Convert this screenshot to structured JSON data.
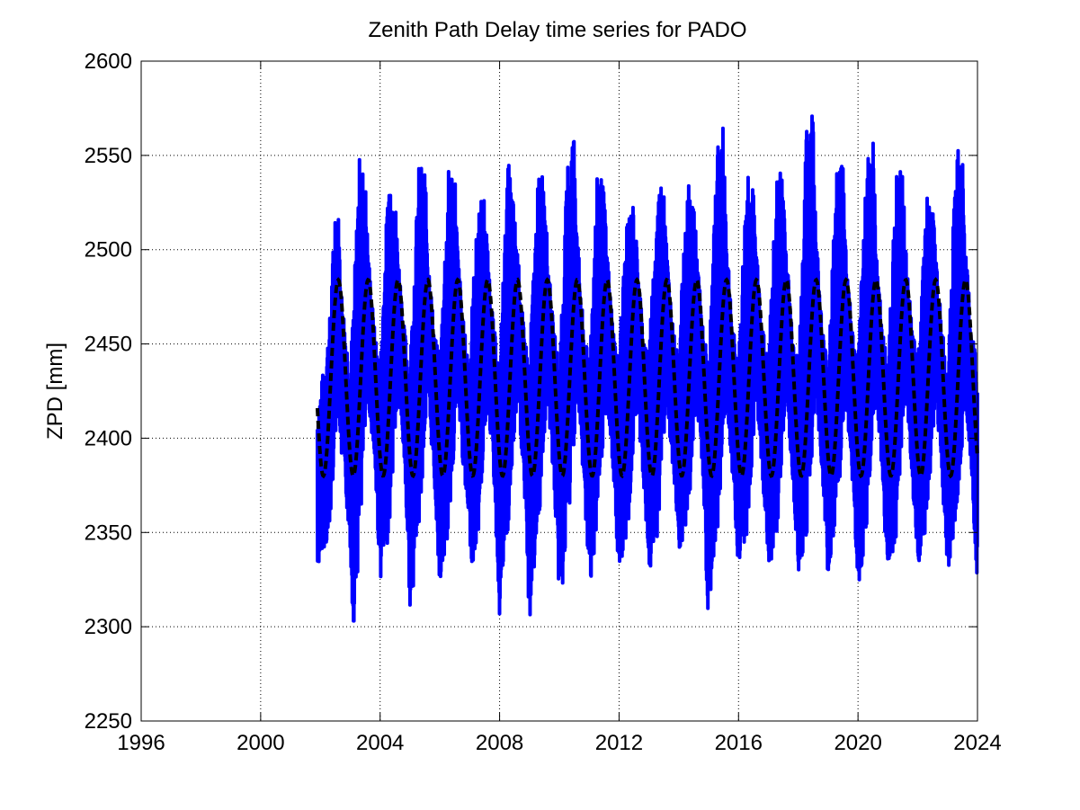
{
  "chart_data": {
    "type": "line",
    "title": "Zenith Path Delay time series for PADO",
    "xlabel": "",
    "ylabel": "ZPD [mm]",
    "xlim": [
      1996,
      2024
    ],
    "ylim": [
      2250,
      2600
    ],
    "xticks": [
      "1996",
      "2000",
      "2004",
      "2008",
      "2012",
      "2016",
      "2020",
      "2024"
    ],
    "yticks": [
      "2250",
      "2300",
      "2350",
      "2400",
      "2450",
      "2500",
      "2550",
      "2600"
    ],
    "grid": true,
    "colors": {
      "observed": "#0000ff",
      "model": "#000000"
    },
    "series": [
      {
        "style": "solid",
        "color": "#0000ff",
        "x_range": [
          2001.8,
          2024.0
        ],
        "envelope": {
          "x": [
            2001.9,
            2002.0,
            2002.3,
            2002.5,
            2002.6,
            2002.7,
            2002.9,
            2003.0,
            2003.1,
            2003.3,
            2003.5,
            2003.6,
            2003.8,
            2004.0,
            2004.1,
            2004.3,
            2004.5,
            2004.6,
            2004.8,
            2005.0,
            2005.1,
            2005.3,
            2005.5,
            2005.6,
            2005.8,
            2006.0,
            2006.1,
            2006.3,
            2006.5,
            2006.6,
            2006.8,
            2007.0,
            2007.1,
            2007.3,
            2007.5,
            2007.6,
            2007.8,
            2008.0,
            2008.1,
            2008.3,
            2008.5,
            2008.6,
            2008.8,
            2009.0,
            2009.1,
            2009.3,
            2009.5,
            2009.6,
            2009.8,
            2010.0,
            2010.1,
            2010.3,
            2010.5,
            2010.6,
            2010.8,
            2011.0,
            2011.1,
            2011.3,
            2011.5,
            2011.6,
            2011.8,
            2012.0,
            2012.1,
            2012.3,
            2012.5,
            2012.6,
            2012.8,
            2013.0,
            2013.1,
            2013.3,
            2013.5,
            2013.6,
            2013.8,
            2014.0,
            2014.1,
            2014.3,
            2014.5,
            2014.6,
            2014.8,
            2015.0,
            2015.1,
            2015.3,
            2015.5,
            2015.6,
            2015.8,
            2016.0,
            2016.1,
            2016.3,
            2016.5,
            2016.6,
            2016.8,
            2017.0,
            2017.1,
            2017.3,
            2017.5,
            2017.6,
            2017.8,
            2018.0,
            2018.1,
            2018.3,
            2018.5,
            2018.6,
            2018.8,
            2019.0,
            2019.1,
            2019.3,
            2019.5,
            2019.6,
            2019.8,
            2020.0,
            2020.1,
            2020.3,
            2020.5,
            2020.6,
            2020.8,
            2021.0,
            2021.1,
            2021.3,
            2021.5,
            2021.6,
            2021.8,
            2022.0,
            2022.1,
            2022.3,
            2022.5,
            2022.6,
            2022.8,
            2023.0,
            2023.1,
            2023.3,
            2023.5,
            2023.6,
            2023.8,
            2024.0
          ],
          "high": [
            2415,
            2425,
            2460,
            2525,
            2520,
            2480,
            2450,
            2440,
            2470,
            2550,
            2540,
            2500,
            2460,
            2440,
            2480,
            2545,
            2530,
            2500,
            2460,
            2440,
            2480,
            2545,
            2545,
            2500,
            2460,
            2440,
            2480,
            2545,
            2545,
            2500,
            2460,
            2440,
            2480,
            2525,
            2530,
            2500,
            2460,
            2440,
            2480,
            2550,
            2520,
            2500,
            2460,
            2440,
            2480,
            2540,
            2545,
            2500,
            2460,
            2440,
            2480,
            2555,
            2565,
            2510,
            2460,
            2440,
            2480,
            2550,
            2530,
            2500,
            2460,
            2440,
            2480,
            2520,
            2525,
            2500,
            2460,
            2440,
            2480,
            2530,
            2545,
            2500,
            2460,
            2440,
            2480,
            2535,
            2530,
            2500,
            2460,
            2440,
            2480,
            2560,
            2565,
            2510,
            2460,
            2440,
            2480,
            2550,
            2530,
            2500,
            2460,
            2440,
            2480,
            2545,
            2540,
            2500,
            2460,
            2440,
            2480,
            2575,
            2575,
            2510,
            2460,
            2440,
            2480,
            2545,
            2550,
            2500,
            2460,
            2440,
            2480,
            2555,
            2560,
            2510,
            2460,
            2440,
            2480,
            2545,
            2540,
            2500,
            2460,
            2440,
            2480,
            2530,
            2525,
            2500,
            2460,
            2440,
            2480,
            2555,
            2550,
            2500,
            2460,
            2440
          ],
          "low": [
            2325,
            2340,
            2345,
            2400,
            2420,
            2390,
            2360,
            2340,
            2298,
            2340,
            2400,
            2420,
            2390,
            2325,
            2330,
            2350,
            2400,
            2420,
            2390,
            2310,
            2320,
            2350,
            2400,
            2420,
            2380,
            2320,
            2330,
            2350,
            2400,
            2420,
            2380,
            2345,
            2330,
            2350,
            2400,
            2420,
            2380,
            2305,
            2325,
            2350,
            2400,
            2420,
            2380,
            2300,
            2320,
            2350,
            2400,
            2420,
            2380,
            2315,
            2320,
            2350,
            2400,
            2420,
            2380,
            2320,
            2330,
            2350,
            2400,
            2420,
            2380,
            2325,
            2330,
            2350,
            2400,
            2420,
            2380,
            2330,
            2330,
            2350,
            2400,
            2420,
            2380,
            2340,
            2340,
            2350,
            2400,
            2420,
            2380,
            2295,
            2330,
            2350,
            2400,
            2420,
            2380,
            2330,
            2335,
            2350,
            2400,
            2420,
            2380,
            2330,
            2335,
            2350,
            2400,
            2420,
            2380,
            2330,
            2330,
            2350,
            2400,
            2420,
            2380,
            2325,
            2330,
            2350,
            2400,
            2420,
            2380,
            2320,
            2330,
            2350,
            2400,
            2420,
            2380,
            2320,
            2330,
            2350,
            2400,
            2420,
            2380,
            2330,
            2335,
            2350,
            2400,
            2420,
            2380,
            2330,
            2335,
            2350,
            2400,
            2420,
            2380,
            2320
          ]
        }
      },
      {
        "style": "dashed",
        "color": "#000000",
        "model": {
          "type": "annual sinusoid",
          "x_start": 2001.9,
          "x_end": 2024.0,
          "mean": 2432,
          "amplitude": 52,
          "peak_fraction_of_year": 0.6
        }
      }
    ]
  }
}
